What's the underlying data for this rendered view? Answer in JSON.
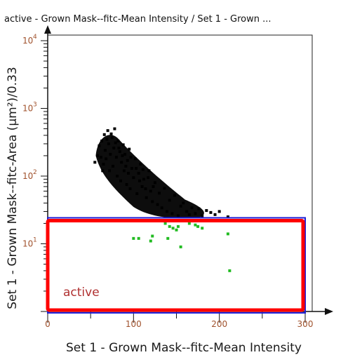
{
  "chart_data": {
    "type": "scatter",
    "title": "active - Grown Mask--fitc-Mean Intensity / Set 1 - Grown ...",
    "xlabel": "Set 1 - Grown Mask--fitc-Mean Intensity",
    "ylabel": "Set 1 - Grown Mask--fitc-Area (µm²)/0.33",
    "xlim": [
      0,
      300
    ],
    "ylim": [
      1,
      10000
    ],
    "yscale": "log",
    "x_ticks": [
      "0",
      "100",
      "200",
      "300"
    ],
    "y_ticks": [
      {
        "base": "10",
        "exp": "1"
      },
      {
        "base": "10",
        "exp": "2"
      },
      {
        "base": "10",
        "exp": "3"
      },
      {
        "base": "10",
        "exp": "4"
      }
    ],
    "gate": {
      "label": "active",
      "x": [
        0,
        300
      ],
      "y": [
        1.05,
        22
      ]
    },
    "colors": {
      "cluster": "#000000",
      "gated": "#22bb22",
      "gate_outline": "#1c1cd6",
      "highlight": "#ff0000"
    },
    "series": [
      {
        "points": [
          [
            55,
            160
          ],
          [
            58,
            200
          ],
          [
            60,
            280
          ],
          [
            62,
            190
          ],
          [
            63,
            330
          ],
          [
            65,
            150
          ],
          [
            66,
            410
          ],
          [
            67,
            240
          ],
          [
            68,
            180
          ],
          [
            70,
            470
          ],
          [
            71,
            300
          ],
          [
            72,
            120
          ],
          [
            73,
            210
          ],
          [
            75,
            370
          ],
          [
            76,
            140
          ],
          [
            77,
            260
          ],
          [
            78,
            500
          ],
          [
            80,
            190
          ],
          [
            81,
            100
          ],
          [
            82,
            330
          ],
          [
            84,
            230
          ],
          [
            85,
            85
          ],
          [
            86,
            160
          ],
          [
            88,
            290
          ],
          [
            89,
            120
          ],
          [
            90,
            210
          ],
          [
            92,
            75
          ],
          [
            93,
            170
          ],
          [
            95,
            250
          ],
          [
            96,
            65
          ],
          [
            98,
            130
          ],
          [
            100,
            95
          ],
          [
            102,
            180
          ],
          [
            104,
            55
          ],
          [
            106,
            110
          ],
          [
            108,
            150
          ],
          [
            110,
            70
          ],
          [
            112,
            90
          ],
          [
            115,
            48
          ],
          [
            118,
            120
          ],
          [
            120,
            60
          ],
          [
            122,
            42
          ],
          [
            125,
            80
          ],
          [
            128,
            38
          ],
          [
            130,
            56
          ],
          [
            133,
            34
          ],
          [
            136,
            66
          ],
          [
            139,
            30
          ],
          [
            142,
            44
          ],
          [
            145,
            28
          ],
          [
            148,
            52
          ],
          [
            152,
            26
          ],
          [
            155,
            36
          ],
          [
            158,
            40
          ],
          [
            162,
            30
          ],
          [
            165,
            27
          ],
          [
            168,
            34
          ],
          [
            172,
            28
          ],
          [
            176,
            33
          ],
          [
            180,
            26
          ],
          [
            185,
            31
          ],
          [
            190,
            29
          ],
          [
            195,
            27
          ],
          [
            200,
            30
          ],
          [
            210,
            25
          ],
          [
            64,
            120
          ],
          [
            69,
            350
          ],
          [
            74,
            420
          ],
          [
            79,
            310
          ],
          [
            83,
            260
          ],
          [
            87,
            200
          ],
          [
            91,
            140
          ],
          [
            94,
            110
          ],
          [
            97,
            190
          ],
          [
            103,
            130
          ],
          [
            107,
            85
          ],
          [
            111,
            125
          ],
          [
            114,
            65
          ],
          [
            117,
            95
          ],
          [
            123,
            70
          ]
        ]
      },
      {
        "points": [
          [
            100,
            12
          ],
          [
            106,
            12
          ],
          [
            122,
            13
          ],
          [
            137,
            20
          ],
          [
            142,
            18
          ],
          [
            146,
            17
          ],
          [
            150,
            16
          ],
          [
            152,
            18
          ],
          [
            155,
            9
          ],
          [
            165,
            20
          ],
          [
            172,
            19
          ],
          [
            175,
            18
          ],
          [
            180,
            17
          ],
          [
            210,
            14
          ],
          [
            212,
            4
          ],
          [
            140,
            12
          ],
          [
            120,
            11
          ]
        ]
      }
    ]
  }
}
